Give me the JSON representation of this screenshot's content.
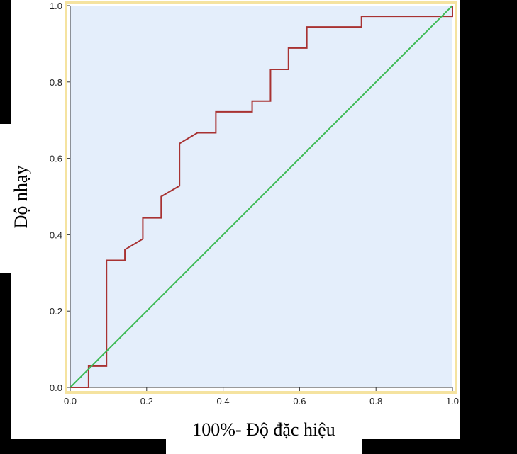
{
  "chart_data": {
    "type": "line",
    "title": "",
    "xlabel": "100%- Độ đặc hiệu",
    "ylabel": "Độ nhạy",
    "xlim": [
      0,
      1
    ],
    "ylim": [
      0,
      1
    ],
    "x_ticks": [
      "0.0",
      "0.2",
      "0.4",
      "0.6",
      "0.8",
      "1.0"
    ],
    "y_ticks": [
      "0.0",
      "0.2",
      "0.4",
      "0.6",
      "0.8",
      "1.0"
    ],
    "grid": false,
    "legend": "none",
    "series": [
      {
        "color": "#a83232",
        "x": [
          0,
          0.048,
          0.048,
          0.095,
          0.095,
          0.143,
          0.143,
          0.19,
          0.19,
          0.238,
          0.238,
          0.286,
          0.286,
          0.333,
          0.381,
          0.381,
          0.476,
          0.476,
          0.524,
          0.524,
          0.571,
          0.571,
          0.619,
          0.619,
          0.762,
          0.762,
          1.0,
          1.0
        ],
        "y": [
          0,
          0,
          0.056,
          0.056,
          0.333,
          0.333,
          0.361,
          0.389,
          0.444,
          0.444,
          0.5,
          0.528,
          0.639,
          0.667,
          0.667,
          0.722,
          0.722,
          0.75,
          0.75,
          0.833,
          0.833,
          0.889,
          0.889,
          0.944,
          0.944,
          0.972,
          0.972,
          1.0
        ]
      },
      {
        "color": "#3cba54",
        "x": [
          0,
          1
        ],
        "y": [
          0,
          1
        ]
      }
    ],
    "plot_background": "#e4eefb",
    "frame_color": "#f5e3a0"
  },
  "background_color": "#000000"
}
